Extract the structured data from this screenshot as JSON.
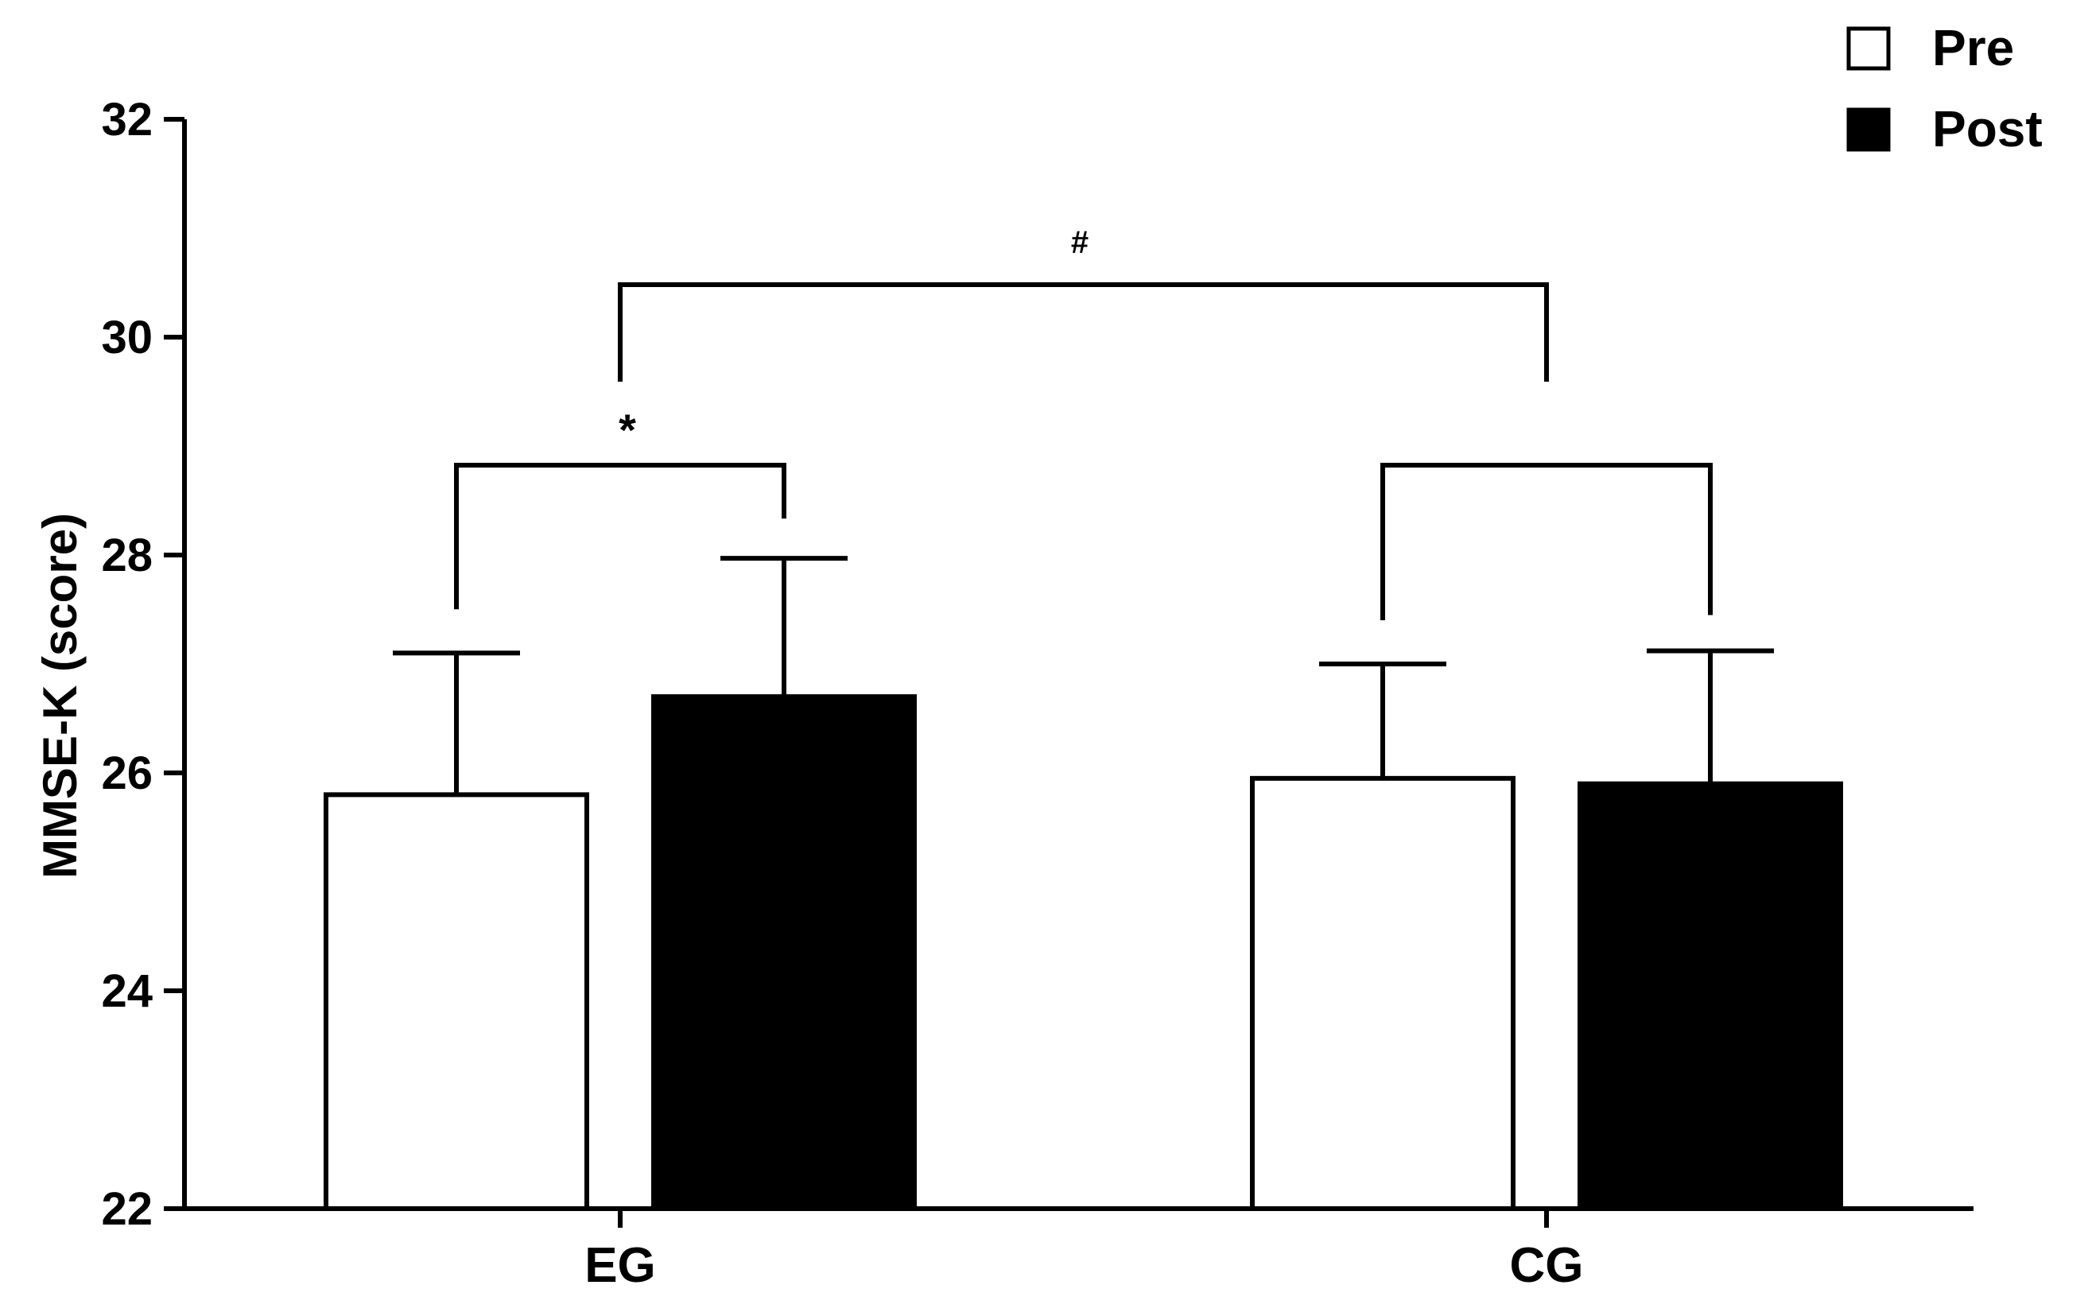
{
  "chart_data": {
    "type": "bar",
    "categories": [
      "EG",
      "CG"
    ],
    "series": [
      {
        "name": "Pre",
        "values": [
          25.8,
          25.95
        ],
        "errors": [
          1.3,
          1.05
        ],
        "fill": "#ffffff"
      },
      {
        "name": "Post",
        "values": [
          26.7,
          25.9
        ],
        "errors": [
          1.27,
          1.22
        ],
        "fill": "#000000"
      }
    ],
    "ylabel": "MMSE-K (score)",
    "ylim": [
      22,
      32
    ],
    "yticks": [
      22,
      24,
      26,
      28,
      30,
      32
    ],
    "legend_position": "top-right",
    "annotations": [
      {
        "label": "*",
        "between": "EG Pre – EG Post"
      },
      {
        "label": "",
        "between": "CG Pre – CG Post"
      },
      {
        "label": "#",
        "between": "EG – CG"
      }
    ]
  }
}
